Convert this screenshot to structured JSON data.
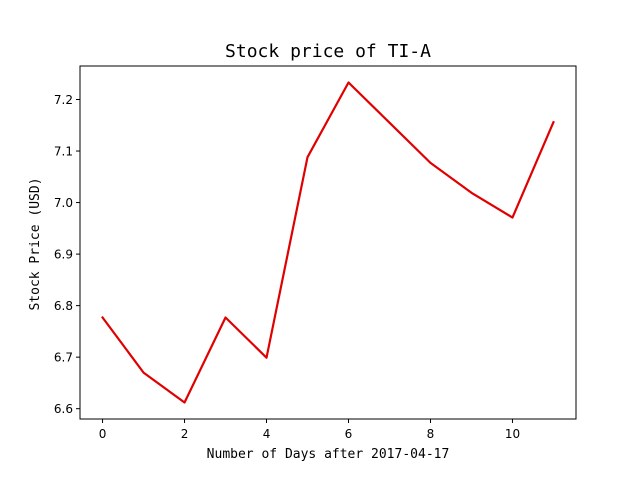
{
  "chart_data": {
    "type": "line",
    "title": "Stock price of TI-A",
    "xlabel": "Number of Days after 2017-04-17",
    "ylabel": "Stock Price (USD)",
    "x": [
      0,
      1,
      2,
      3,
      4,
      5,
      6,
      7,
      8,
      9,
      10,
      11
    ],
    "series": [
      {
        "values": [
          6.777,
          6.67,
          6.612,
          6.777,
          6.699,
          7.088,
          7.233,
          7.155,
          7.077,
          7.019,
          6.971,
          7.156
        ]
      }
    ],
    "xlim": [
      -0.55,
      11.55
    ],
    "ylim": [
      6.58,
      7.265
    ],
    "xticks": [
      0,
      2,
      4,
      6,
      8,
      10
    ],
    "xtick_labels": [
      "0",
      "2",
      "4",
      "6",
      "8",
      "10"
    ],
    "yticks": [
      6.6,
      6.7,
      6.8,
      6.9,
      7.0,
      7.1,
      7.2
    ],
    "ytick_labels": [
      "6.6",
      "6.7",
      "6.8",
      "6.9",
      "7.0",
      "7.1",
      "7.2"
    ],
    "line_color": "#e00000",
    "grid": false,
    "legend": "none"
  }
}
